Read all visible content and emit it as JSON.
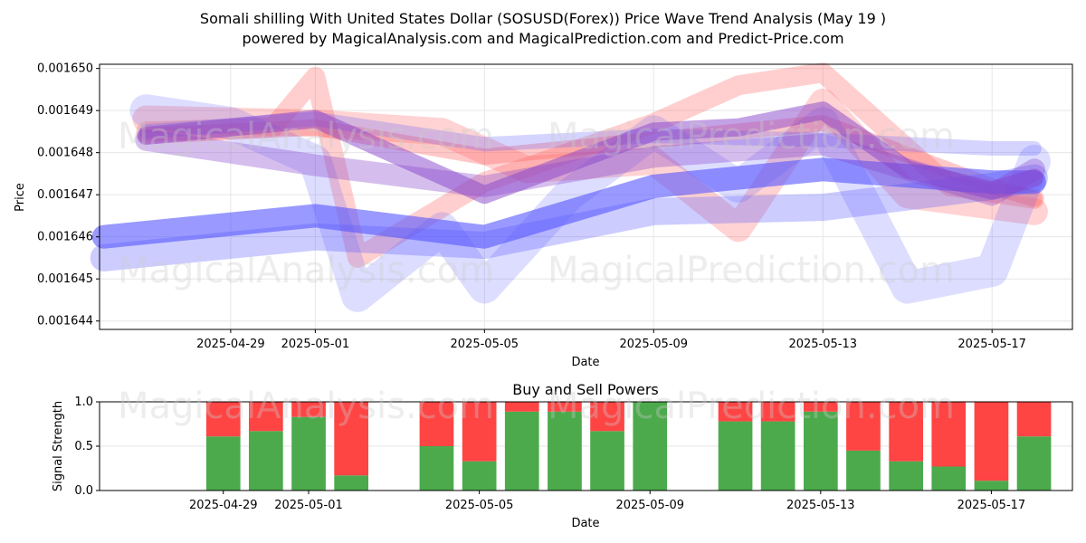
{
  "header": {
    "title_line1": "Somali shilling With United States Dollar (SOSUSD(Forex)) Price Wave Trend Analysis (May 19 )",
    "title_line2": "powered by MagicalAnalysis.com and MagicalPrediction.com and Predict-Price.com"
  },
  "watermarks": {
    "left": "MagicalAnalysis.com",
    "right": "MagicalPrediction.com"
  },
  "colors": {
    "red_wave": "#ff6060",
    "blue_wave": "#5555ff",
    "purple_wave": "#8844cc",
    "buy": "#4caa4c",
    "sell": "#ff4444",
    "grid": "#e6e6e6"
  },
  "chart_data": [
    {
      "type": "line",
      "title": "",
      "xlabel": "Date",
      "ylabel": "Price",
      "x_range": [
        "2025-04-26",
        "2025-05-19"
      ],
      "ylim": [
        0.0016438,
        0.0016501
      ],
      "yticks": [
        "0.001644",
        "0.001645",
        "0.001646",
        "0.001647",
        "0.001648",
        "0.001649",
        "0.001650"
      ],
      "ytick_values": [
        0.001644,
        0.001645,
        0.001646,
        0.001647,
        0.001648,
        0.001649,
        0.00165
      ],
      "xticks": [
        "2025-04-29",
        "2025-05-01",
        "2025-05-05",
        "2025-05-09",
        "2025-05-13",
        "2025-05-17"
      ],
      "xtick_dates": [
        "2025-04-29",
        "2025-05-01",
        "2025-05-05",
        "2025-05-09",
        "2025-05-13",
        "2025-05-17"
      ],
      "series": [
        {
          "name": "red-wave-1",
          "color": "red",
          "x": [
            "2025-04-27",
            "2025-05-01",
            "2025-05-05",
            "2025-05-09",
            "2025-05-13",
            "2025-05-17",
            "2025-05-18"
          ],
          "values": [
            0.0016484,
            0.0016486,
            0.0016479,
            0.0016483,
            0.0016487,
            0.0016472,
            0.0016469
          ]
        },
        {
          "name": "red-wave-2",
          "color": "red",
          "x": [
            "2025-04-27",
            "2025-04-30",
            "2025-05-01",
            "2025-05-02",
            "2025-05-05",
            "2025-05-09",
            "2025-05-11",
            "2025-05-13",
            "2025-05-16",
            "2025-05-18"
          ],
          "values": [
            0.0016485,
            0.0016486,
            0.0016498,
            0.0016455,
            0.0016473,
            0.0016487,
            0.0016496,
            0.0016499,
            0.0016472,
            0.0016469
          ]
        },
        {
          "name": "red-wave-3",
          "color": "red",
          "x": [
            "2025-04-27",
            "2025-05-01",
            "2025-05-04",
            "2025-05-06",
            "2025-05-09",
            "2025-05-11",
            "2025-05-13",
            "2025-05-15",
            "2025-05-18"
          ],
          "values": [
            0.0016488,
            0.0016487,
            0.0016485,
            0.0016476,
            0.0016478,
            0.0016462,
            0.0016492,
            0.001647,
            0.0016466
          ]
        },
        {
          "name": "blue-wave-1",
          "color": "blue",
          "x": [
            "2025-04-26",
            "2025-05-01",
            "2025-05-05",
            "2025-05-09",
            "2025-05-13",
            "2025-05-17",
            "2025-05-18"
          ],
          "values": [
            0.001646,
            0.0016465,
            0.001646,
            0.0016472,
            0.0016476,
            0.0016473,
            0.0016473
          ]
        },
        {
          "name": "blue-wave-2",
          "color": "blue",
          "x": [
            "2025-04-27",
            "2025-05-01",
            "2025-05-05",
            "2025-05-09",
            "2025-05-13",
            "2025-05-17",
            "2025-05-18"
          ],
          "values": [
            0.0016485,
            0.0016488,
            0.0016482,
            0.0016484,
            0.0016483,
            0.0016481,
            0.0016481
          ]
        },
        {
          "name": "blue-wave-3",
          "color": "blue",
          "x": [
            "2025-04-27",
            "2025-04-29",
            "2025-05-01",
            "2025-05-02",
            "2025-05-04",
            "2025-05-05",
            "2025-05-07",
            "2025-05-09",
            "2025-05-11",
            "2025-05-13",
            "2025-05-15",
            "2025-05-17",
            "2025-05-18"
          ],
          "values": [
            0.001649,
            0.0016487,
            0.0016478,
            0.0016446,
            0.0016462,
            0.0016448,
            0.001647,
            0.0016485,
            0.0016472,
            0.0016487,
            0.0016448,
            0.0016452,
            0.0016478
          ]
        },
        {
          "name": "blue-wave-4",
          "color": "blue",
          "x": [
            "2025-04-26",
            "2025-05-01",
            "2025-05-05",
            "2025-05-09",
            "2025-05-13",
            "2025-05-17",
            "2025-05-18"
          ],
          "values": [
            0.0016455,
            0.001646,
            0.0016458,
            0.0016466,
            0.0016467,
            0.0016472,
            0.0016474
          ]
        },
        {
          "name": "purple-wave-1",
          "color": "purple",
          "x": [
            "2025-04-27",
            "2025-05-01",
            "2025-05-05",
            "2025-05-09",
            "2025-05-11",
            "2025-05-13",
            "2025-05-15",
            "2025-05-17",
            "2025-05-18"
          ],
          "values": [
            0.0016484,
            0.0016488,
            0.001647,
            0.0016485,
            0.0016486,
            0.001649,
            0.0016476,
            0.0016471,
            0.0016474
          ]
        },
        {
          "name": "purple-wave-2",
          "color": "purple",
          "x": [
            "2025-04-27",
            "2025-05-01",
            "2025-05-05",
            "2025-05-09",
            "2025-05-13",
            "2025-05-17",
            "2025-05-18"
          ],
          "values": [
            0.0016483,
            0.0016477,
            0.0016472,
            0.0016479,
            0.0016482,
            0.001647,
            0.0016476
          ]
        }
      ]
    },
    {
      "type": "bar",
      "title": "Buy and Sell Powers",
      "xlabel": "Date",
      "ylabel": "Signal Strength",
      "ylim": [
        0,
        1
      ],
      "yticks": [
        "0.0",
        "0.5",
        "1.0"
      ],
      "ytick_values": [
        0,
        0.5,
        1
      ],
      "xticks": [
        "2025-04-29",
        "2025-05-01",
        "2025-05-05",
        "2025-05-09",
        "2025-05-13",
        "2025-05-17"
      ],
      "xtick_dates": [
        "2025-04-29",
        "2025-05-01",
        "2025-05-05",
        "2025-05-09",
        "2025-05-13",
        "2025-05-17"
      ],
      "categories": [
        "2025-04-29",
        "2025-04-30",
        "2025-05-01",
        "2025-05-02",
        "2025-05-04",
        "2025-05-05",
        "2025-05-06",
        "2025-05-07",
        "2025-05-08",
        "2025-05-09",
        "2025-05-11",
        "2025-05-12",
        "2025-05-13",
        "2025-05-14",
        "2025-05-15",
        "2025-05-16",
        "2025-05-17",
        "2025-05-18"
      ],
      "series": [
        {
          "name": "Buy",
          "values": [
            0.61,
            0.67,
            0.83,
            0.17,
            0.5,
            0.33,
            0.89,
            0.89,
            0.67,
            1.0,
            0.78,
            0.78,
            0.89,
            0.45,
            0.33,
            0.27,
            0.11,
            0.61
          ]
        },
        {
          "name": "Sell",
          "values": [
            0.39,
            0.33,
            0.17,
            0.83,
            0.5,
            0.67,
            0.11,
            0.11,
            0.33,
            0.0,
            0.22,
            0.22,
            0.11,
            0.55,
            0.67,
            0.73,
            0.89,
            0.39
          ]
        }
      ]
    }
  ]
}
